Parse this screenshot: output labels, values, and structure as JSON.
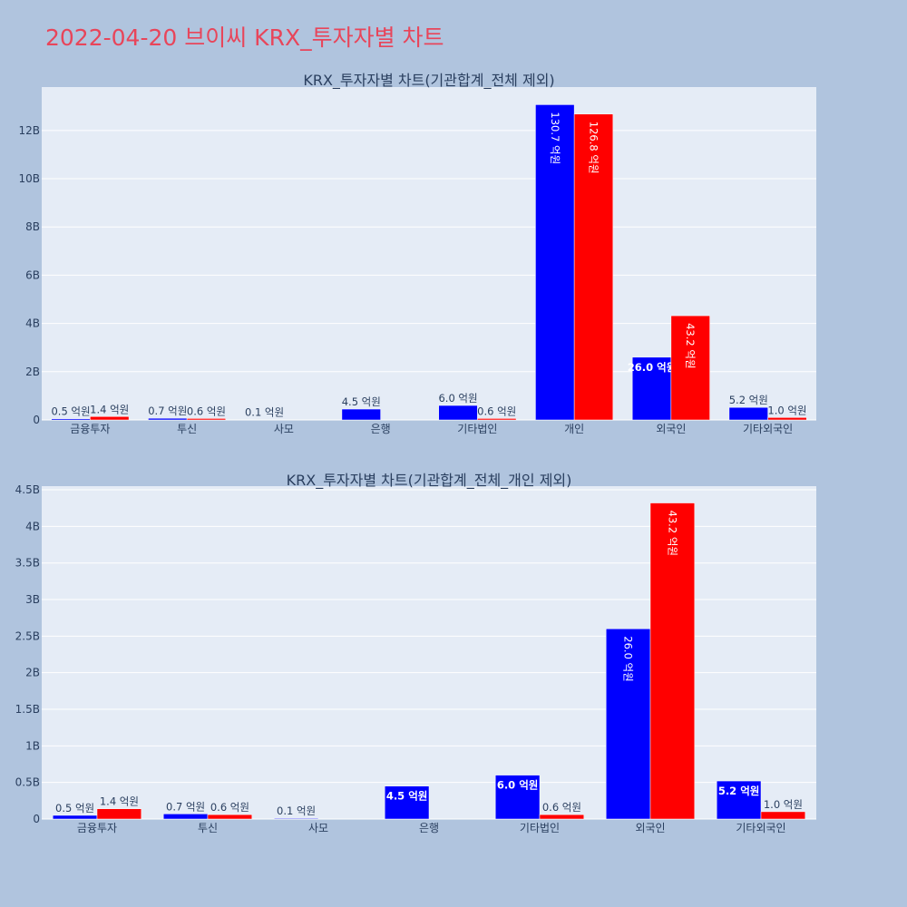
{
  "page_title": "2022-04-20 브이씨 KRX_투자자별 차트",
  "colors": {
    "sell": "#0000ff",
    "buy": "#ff0000",
    "plot_bg": "#e5ecf6",
    "page_bg": "#b0c4de",
    "title": "#e8455a"
  },
  "chart_data": [
    {
      "type": "bar",
      "title": "KRX_투자자별 차트(기관합계_전체 제외)",
      "categories": [
        "금융투자",
        "투신",
        "사모",
        "은행",
        "기타법인",
        "개인",
        "외국인",
        "기타외국인"
      ],
      "series": [
        {
          "values": [
            50000000,
            70000000,
            10000000,
            450000000,
            600000000,
            13070000000,
            2600000000,
            520000000
          ],
          "labels": [
            "0.5 억원",
            "0.7 억원",
            "0.1 억원",
            "4.5 억원",
            "6.0 억원",
            "130.7 억원",
            "26.0 억원",
            "5.2 억원"
          ]
        },
        {
          "values": [
            140000000,
            60000000,
            0,
            0,
            60000000,
            12680000000,
            4320000000,
            100000000
          ],
          "labels": [
            "1.4 억원",
            "0.6 억원",
            "",
            "",
            "0.6 억원",
            "126.8 억원",
            "43.2 억원",
            "1.0 억원"
          ]
        }
      ],
      "ylim": [
        0,
        13800000000
      ],
      "yticks": [
        0,
        2000000000,
        4000000000,
        6000000000,
        8000000000,
        10000000000,
        12000000000
      ],
      "ytick_labels": [
        "0",
        "2B",
        "4B",
        "6B",
        "8B",
        "10B",
        "12B"
      ],
      "xlabel": "",
      "ylabel": "",
      "grid": true,
      "legend": "none"
    },
    {
      "type": "bar",
      "title": "KRX_투자자별 차트(기관합계_전체_개인 제외)",
      "categories": [
        "금융투자",
        "투신",
        "사모",
        "은행",
        "기타법인",
        "외국인",
        "기타외국인"
      ],
      "series": [
        {
          "values": [
            50000000,
            70000000,
            10000000,
            450000000,
            600000000,
            2600000000,
            520000000
          ],
          "labels": [
            "0.5 억원",
            "0.7 억원",
            "0.1 억원",
            "4.5 억원",
            "6.0 억원",
            "26.0 억원",
            "5.2 억원"
          ]
        },
        {
          "values": [
            140000000,
            60000000,
            0,
            0,
            60000000,
            4320000000,
            100000000
          ],
          "labels": [
            "1.4 억원",
            "0.6 억원",
            "",
            "",
            "0.6 억원",
            "43.2 억원",
            "1.0 억원"
          ]
        }
      ],
      "ylim": [
        0,
        4550000000
      ],
      "yticks": [
        0,
        500000000,
        1000000000,
        1500000000,
        2000000000,
        2500000000,
        3000000000,
        3500000000,
        4000000000,
        4500000000
      ],
      "ytick_labels": [
        "0",
        "0.5B",
        "1B",
        "1.5B",
        "2B",
        "2.5B",
        "3B",
        "3.5B",
        "4B",
        "4.5B"
      ],
      "xlabel": "",
      "ylabel": "",
      "grid": true,
      "legend": "none"
    }
  ]
}
